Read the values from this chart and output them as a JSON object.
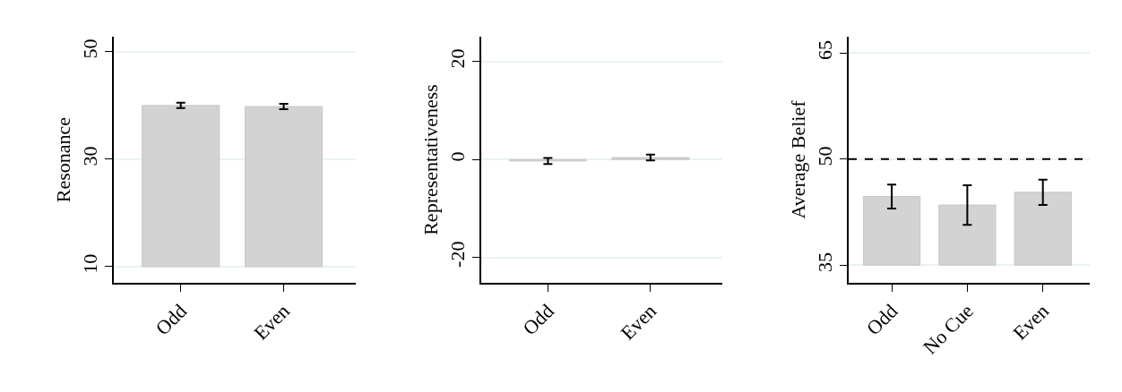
{
  "chart_data": [
    {
      "type": "bar",
      "ylabel": "Resonance",
      "categories": [
        "Odd",
        "Even"
      ],
      "base": [
        10,
        10
      ],
      "values": [
        30,
        29.8
      ],
      "errors": [
        0.5,
        0.5
      ],
      "color": "#d3d3d3",
      "ylim": [
        7,
        52.8
      ],
      "yticks": [
        10,
        30,
        50
      ],
      "grid": "y"
    },
    {
      "type": "bar",
      "ylabel": "Representativeness",
      "categories": [
        "Odd",
        "Even"
      ],
      "values": [
        -0.3,
        0.4
      ],
      "errors": [
        0.6,
        0.6
      ],
      "color": "#d3d3d3",
      "ylim": [
        -25.2,
        25.1
      ],
      "yticks": [
        -20,
        0,
        20
      ],
      "grid": "y"
    },
    {
      "type": "bar",
      "ylabel": "Average Belief",
      "categories": [
        "Odd",
        "No Cue",
        "Even"
      ],
      "base": [
        35,
        35,
        35
      ],
      "values": [
        9.7,
        8.5,
        10.3
      ],
      "errors": [
        1.7,
        2.8,
        1.8
      ],
      "color": "#d3d3d3",
      "ylim": [
        32.5,
        67.3
      ],
      "yticks": [
        35,
        50,
        65
      ],
      "grid": "y",
      "ref_lines": [
        {
          "axis": "y",
          "value": 50,
          "color": "#000000",
          "line_style": "dashed"
        }
      ]
    }
  ]
}
